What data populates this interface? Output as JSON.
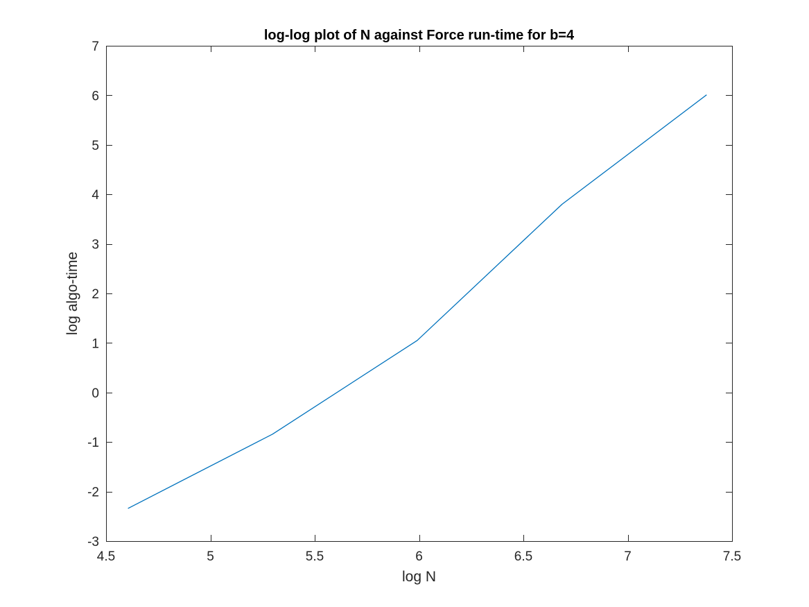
{
  "chart_data": {
    "type": "line",
    "title": "log-log plot of N against Force run-time for b=4",
    "xlabel": "log N",
    "ylabel": "log algo-time",
    "xlim": [
      4.5,
      7.5
    ],
    "ylim": [
      -3,
      7
    ],
    "xticks": [
      4.5,
      5,
      5.5,
      6,
      6.5,
      7,
      7.5
    ],
    "xtick_labels": [
      "4.5",
      "5",
      "5.5",
      "6",
      "6.5",
      "7",
      "7.5"
    ],
    "yticks": [
      -3,
      -2,
      -1,
      0,
      1,
      2,
      3,
      4,
      5,
      6,
      7
    ],
    "ytick_labels": [
      "-3",
      "-2",
      "-1",
      "0",
      "1",
      "2",
      "3",
      "4",
      "5",
      "6",
      "7"
    ],
    "grid": false,
    "series": [
      {
        "color": "#0072BD",
        "x": [
          4.605,
          5.298,
          5.991,
          6.685,
          7.378
        ],
        "y": [
          -2.34,
          -0.84,
          1.05,
          3.8,
          6.01
        ]
      }
    ]
  }
}
